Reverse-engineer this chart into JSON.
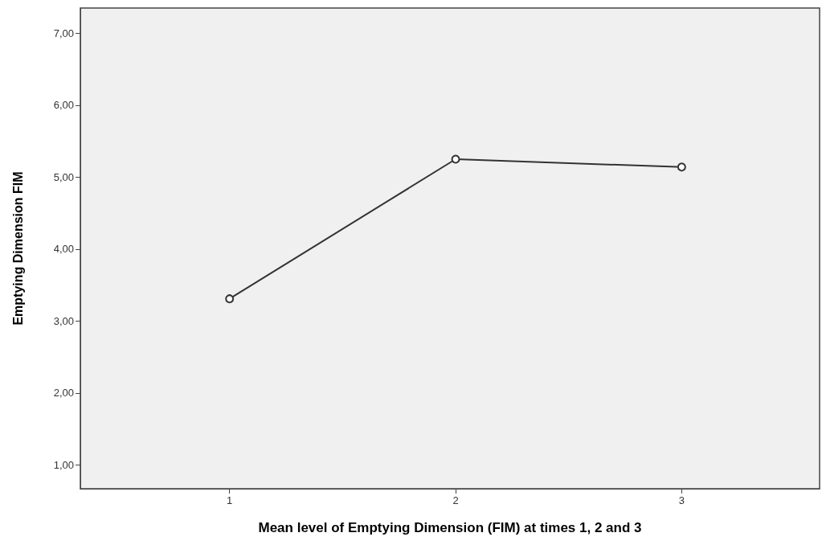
{
  "chart_data": {
    "type": "line",
    "xlabel": "Mean level of Emptying Dimension (FIM) at times 1, 2 and 3",
    "ylabel": "Emptying Dimension FIM",
    "x": [
      1,
      2,
      3
    ],
    "series": [
      {
        "color": "#333333",
        "values": [
          3.31,
          5.25,
          5.14
        ]
      }
    ],
    "xlim": [
      0.34,
      3.61
    ],
    "xticks": [
      1,
      2,
      3
    ],
    "ylim": [
      0.67,
      7.35
    ],
    "yticks": [
      {
        "value": 1,
        "label": "1,00"
      },
      {
        "value": 2,
        "label": "2,00"
      },
      {
        "value": 3,
        "label": "3,00"
      },
      {
        "value": 4,
        "label": "4,00"
      },
      {
        "value": 5,
        "label": "5,00"
      },
      {
        "value": 6,
        "label": "6,00"
      },
      {
        "value": 7,
        "label": "7,00"
      }
    ],
    "grid": false,
    "marker": "circle",
    "line_style": "solid"
  }
}
